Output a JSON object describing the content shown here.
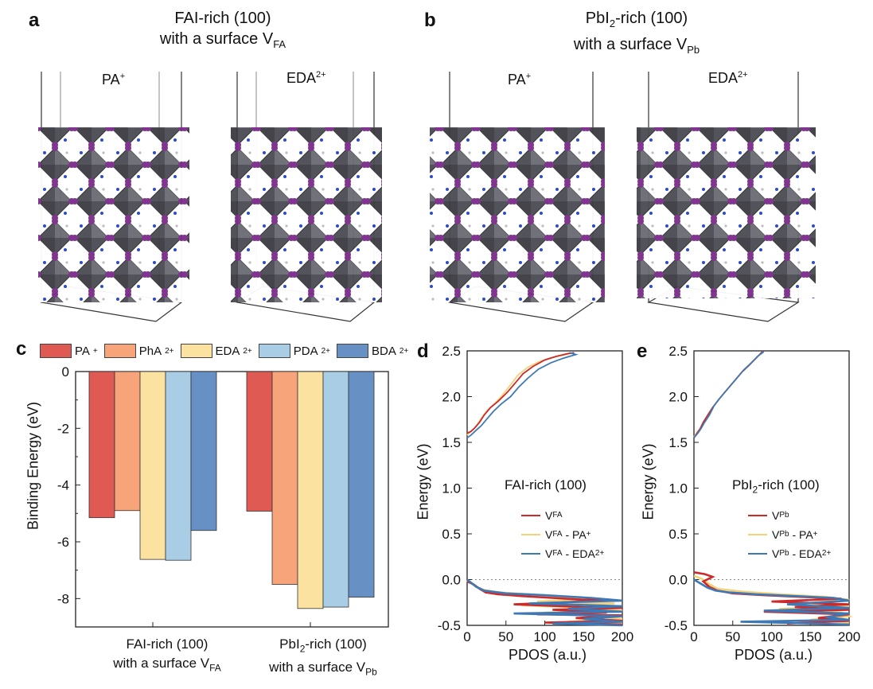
{
  "panels": {
    "a": "a",
    "b": "b",
    "c": "c",
    "d": "d",
    "e": "e"
  },
  "top": {
    "a_title_1": "FAI-rich (100)",
    "a_title_2": "with a surface V",
    "a_title_sub": "FA",
    "b_title_1_pre": "PbI",
    "b_title_1_sub": "2",
    "b_title_1_post": "-rich (100)",
    "b_title_2": "with a surface V",
    "b_title_sub": "Pb",
    "structures": [
      {
        "name": "PA",
        "sup": "+"
      },
      {
        "name": "EDA",
        "sup": "2+"
      },
      {
        "name": "PA",
        "sup": "+"
      },
      {
        "name": "EDA",
        "sup": "2+"
      }
    ]
  },
  "colors": {
    "PA": "#e05a54",
    "PhA": "#f8a47a",
    "EDA": "#fbe2a0",
    "PDA": "#a9cde4",
    "BDA": "#6790c4",
    "line_red": "#cc2a2a",
    "line_yellow": "#f5d27a",
    "line_blue": "#3f79b5"
  },
  "chart_data": [
    {
      "type": "bar",
      "ylabel": "Binding Energy (eV)",
      "ylim": [
        -9,
        0
      ],
      "yticks": [
        0,
        -2,
        -4,
        -6,
        -8
      ],
      "legend": [
        {
          "name": "PA",
          "sup": "+"
        },
        {
          "name": "PhA",
          "sup": "2+"
        },
        {
          "name": "EDA",
          "sup": "2+"
        },
        {
          "name": "PDA",
          "sup": "2+"
        },
        {
          "name": "BDA",
          "sup": "2+"
        }
      ],
      "groups": [
        {
          "label1": "FAI-rich (100)",
          "label2": "with a surface V",
          "label2_sub": "FA",
          "values": [
            -5.15,
            -4.9,
            -6.62,
            -6.65,
            -5.6
          ]
        },
        {
          "label1_pre": "PbI",
          "label1_sub": "2",
          "label1_post": "-rich (100)",
          "label2": "with a surface V",
          "label2_sub": "Pb",
          "values": [
            -4.92,
            -7.5,
            -8.35,
            -8.3,
            -7.95
          ]
        }
      ]
    },
    {
      "type": "line",
      "panel": "d",
      "xlabel": "PDOS (a.u.)",
      "ylabel": "Energy (eV)",
      "xlim": [
        0,
        200
      ],
      "ylim": [
        -0.5,
        2.5
      ],
      "xticks": [
        0,
        50,
        100,
        150,
        200
      ],
      "yticks": [
        -0.5,
        0.0,
        0.5,
        1.0,
        1.5,
        2.0,
        2.5
      ],
      "annotation": "FAI-rich (100)",
      "legend": [
        {
          "main": "V",
          "sub": "FA",
          "tail": ""
        },
        {
          "main": "V",
          "sub": "FA",
          "tail": " - PA",
          "tail_sup": "+"
        },
        {
          "main": "V",
          "sub": "FA",
          "tail": " - EDA",
          "tail_sup": "2+"
        }
      ],
      "conduction": [
        {
          "name": "red",
          "points": [
            [
              0,
              1.6
            ],
            [
              5,
              1.62
            ],
            [
              10,
              1.66
            ],
            [
              16,
              1.72
            ],
            [
              22,
              1.8
            ],
            [
              30,
              1.88
            ],
            [
              40,
              1.95
            ],
            [
              52,
              2.05
            ],
            [
              62,
              2.15
            ],
            [
              72,
              2.25
            ],
            [
              85,
              2.33
            ],
            [
              100,
              2.4
            ],
            [
              115,
              2.44
            ],
            [
              130,
              2.47
            ],
            [
              138,
              2.48
            ]
          ]
        },
        {
          "name": "yellow",
          "points": [
            [
              0,
              1.58
            ],
            [
              6,
              1.63
            ],
            [
              12,
              1.68
            ],
            [
              18,
              1.76
            ],
            [
              26,
              1.85
            ],
            [
              35,
              1.92
            ],
            [
              46,
              2.02
            ],
            [
              56,
              2.13
            ],
            [
              66,
              2.24
            ],
            [
              78,
              2.32
            ],
            [
              92,
              2.38
            ],
            [
              106,
              2.42
            ],
            [
              122,
              2.45
            ],
            [
              134,
              2.47
            ]
          ]
        },
        {
          "name": "blue",
          "points": [
            [
              0,
              1.55
            ],
            [
              5,
              1.58
            ],
            [
              10,
              1.62
            ],
            [
              18,
              1.68
            ],
            [
              26,
              1.76
            ],
            [
              34,
              1.84
            ],
            [
              44,
              1.92
            ],
            [
              56,
              2.0
            ],
            [
              66,
              2.1
            ],
            [
              78,
              2.2
            ],
            [
              92,
              2.3
            ],
            [
              108,
              2.37
            ],
            [
              124,
              2.42
            ],
            [
              140,
              2.46
            ],
            [
              132,
              2.48
            ]
          ]
        }
      ],
      "valence": [
        {
          "name": "red",
          "points": [
            [
              0,
              -0.02
            ],
            [
              8,
              -0.05
            ],
            [
              16,
              -0.1
            ],
            [
              24,
              -0.14
            ],
            [
              40,
              -0.16
            ],
            [
              70,
              -0.18
            ],
            [
              110,
              -0.2
            ],
            [
              150,
              -0.22
            ],
            [
              185,
              -0.22
            ],
            [
              120,
              -0.25
            ],
            [
              60,
              -0.27
            ],
            [
              150,
              -0.3
            ],
            [
              200,
              -0.31
            ],
            [
              110,
              -0.33
            ],
            [
              180,
              -0.36
            ],
            [
              90,
              -0.38
            ],
            [
              200,
              -0.39
            ],
            [
              140,
              -0.42
            ],
            [
              200,
              -0.45
            ],
            [
              100,
              -0.47
            ],
            [
              200,
              -0.49
            ]
          ]
        },
        {
          "name": "yellow",
          "points": [
            [
              0,
              -0.01
            ],
            [
              10,
              -0.07
            ],
            [
              20,
              -0.11
            ],
            [
              40,
              -0.14
            ],
            [
              80,
              -0.16
            ],
            [
              130,
              -0.19
            ],
            [
              170,
              -0.21
            ],
            [
              90,
              -0.24
            ],
            [
              190,
              -0.26
            ],
            [
              70,
              -0.28
            ],
            [
              160,
              -0.31
            ],
            [
              200,
              -0.34
            ],
            [
              100,
              -0.36
            ],
            [
              170,
              -0.4
            ],
            [
              200,
              -0.43
            ],
            [
              130,
              -0.46
            ],
            [
              200,
              -0.48
            ]
          ]
        },
        {
          "name": "blue",
          "points": [
            [
              0,
              0.0
            ],
            [
              12,
              -0.08
            ],
            [
              22,
              -0.12
            ],
            [
              50,
              -0.15
            ],
            [
              100,
              -0.17
            ],
            [
              160,
              -0.2
            ],
            [
              200,
              -0.23
            ],
            [
              80,
              -0.26
            ],
            [
              200,
              -0.29
            ],
            [
              130,
              -0.32
            ],
            [
              200,
              -0.35
            ],
            [
              60,
              -0.37
            ],
            [
              200,
              -0.4
            ],
            [
              150,
              -0.43
            ],
            [
              200,
              -0.46
            ],
            [
              110,
              -0.48
            ],
            [
              200,
              -0.5
            ]
          ]
        }
      ]
    },
    {
      "type": "line",
      "panel": "e",
      "xlabel": "PDOS (a.u.)",
      "ylabel": "Energy (eV)",
      "xlim": [
        0,
        200
      ],
      "ylim": [
        -0.5,
        2.5
      ],
      "xticks": [
        0,
        50,
        100,
        150,
        200
      ],
      "yticks": [
        -0.5,
        0.0,
        0.5,
        1.0,
        1.5,
        2.0,
        2.5
      ],
      "annotation_pre": "PbI",
      "annotation_sub": "2",
      "annotation_post": "-rich (100)",
      "legend": [
        {
          "main": "V",
          "sub": "Pb",
          "tail": ""
        },
        {
          "main": "V",
          "sub": "Pb",
          "tail": " - PA",
          "tail_sup": "+"
        },
        {
          "main": "V",
          "sub": "Pb",
          "tail": " - EDA",
          "tail_sup": "2+"
        }
      ],
      "conduction": [
        {
          "name": "red",
          "points": [
            [
              0,
              1.55
            ],
            [
              4,
              1.6
            ],
            [
              8,
              1.65
            ],
            [
              12,
              1.72
            ],
            [
              18,
              1.8
            ],
            [
              24,
              1.88
            ],
            [
              32,
              1.97
            ],
            [
              42,
              2.07
            ],
            [
              52,
              2.17
            ],
            [
              62,
              2.27
            ],
            [
              72,
              2.35
            ],
            [
              80,
              2.42
            ],
            [
              86,
              2.47
            ],
            [
              88,
              2.49
            ]
          ]
        },
        {
          "name": "yellow",
          "points": [
            [
              0,
              1.56
            ],
            [
              4,
              1.61
            ],
            [
              9,
              1.66
            ],
            [
              13,
              1.73
            ],
            [
              19,
              1.81
            ],
            [
              25,
              1.89
            ],
            [
              33,
              1.98
            ],
            [
              43,
              2.08
            ],
            [
              53,
              2.18
            ],
            [
              63,
              2.28
            ],
            [
              73,
              2.36
            ],
            [
              81,
              2.43
            ],
            [
              87,
              2.48
            ]
          ]
        },
        {
          "name": "blue",
          "points": [
            [
              0,
              1.55
            ],
            [
              5,
              1.6
            ],
            [
              9,
              1.65
            ],
            [
              13,
              1.71
            ],
            [
              20,
              1.8
            ],
            [
              26,
              1.9
            ],
            [
              34,
              1.99
            ],
            [
              44,
              2.09
            ],
            [
              54,
              2.19
            ],
            [
              64,
              2.29
            ],
            [
              74,
              2.37
            ],
            [
              82,
              2.44
            ],
            [
              90,
              2.49
            ]
          ]
        }
      ],
      "valence": [
        {
          "name": "red",
          "points": [
            [
              0,
              0.08
            ],
            [
              14,
              0.06
            ],
            [
              24,
              0.03
            ],
            [
              12,
              -0.02
            ],
            [
              20,
              -0.08
            ],
            [
              30,
              -0.12
            ],
            [
              50,
              -0.15
            ],
            [
              90,
              -0.17
            ],
            [
              140,
              -0.19
            ],
            [
              190,
              -0.21
            ],
            [
              100,
              -0.24
            ],
            [
              200,
              -0.27
            ],
            [
              130,
              -0.3
            ],
            [
              200,
              -0.33
            ],
            [
              90,
              -0.35
            ],
            [
              200,
              -0.38
            ],
            [
              160,
              -0.42
            ],
            [
              200,
              -0.45
            ],
            [
              120,
              -0.48
            ]
          ]
        },
        {
          "name": "yellow",
          "points": [
            [
              0,
              0.04
            ],
            [
              10,
              0.01
            ],
            [
              20,
              -0.05
            ],
            [
              30,
              -0.1
            ],
            [
              60,
              -0.13
            ],
            [
              110,
              -0.16
            ],
            [
              170,
              -0.19
            ],
            [
              200,
              -0.22
            ],
            [
              140,
              -0.26
            ],
            [
              200,
              -0.29
            ],
            [
              110,
              -0.32
            ],
            [
              190,
              -0.36
            ],
            [
              200,
              -0.4
            ],
            [
              150,
              -0.44
            ],
            [
              200,
              -0.47
            ]
          ]
        },
        {
          "name": "blue",
          "points": [
            [
              0,
              0.0
            ],
            [
              8,
              -0.04
            ],
            [
              18,
              -0.09
            ],
            [
              28,
              -0.12
            ],
            [
              45,
              -0.14
            ],
            [
              80,
              -0.16
            ],
            [
              130,
              -0.18
            ],
            [
              180,
              -0.2
            ],
            [
              200,
              -0.23
            ],
            [
              120,
              -0.27
            ],
            [
              200,
              -0.31
            ],
            [
              90,
              -0.34
            ],
            [
              200,
              -0.37
            ],
            [
              170,
              -0.41
            ],
            [
              200,
              -0.44
            ],
            [
              60,
              -0.46
            ],
            [
              200,
              -0.49
            ]
          ]
        }
      ]
    }
  ]
}
